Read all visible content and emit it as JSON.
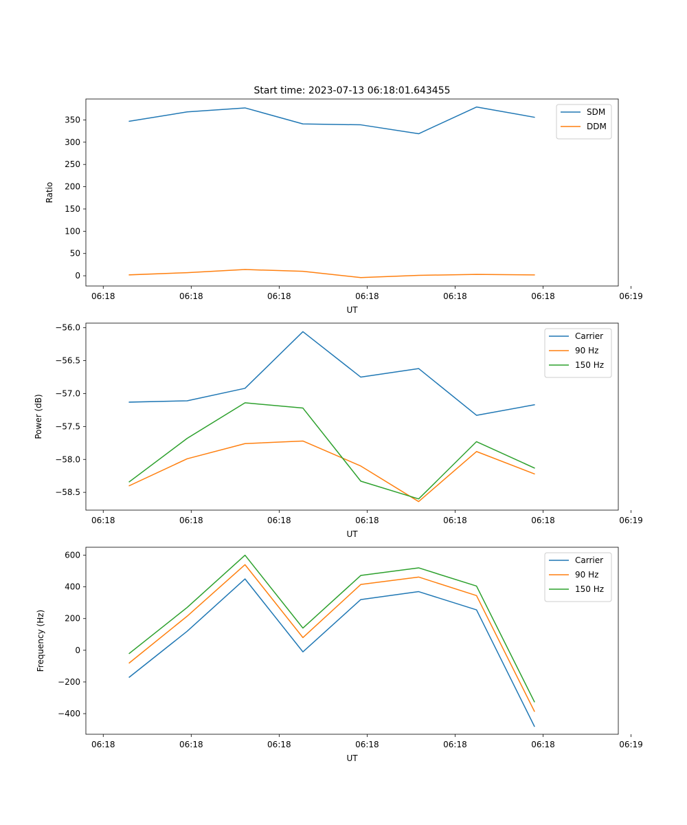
{
  "figure": {
    "title": "Start time: 2023-07-13 06:18:01.643455"
  },
  "chart_data": [
    {
      "type": "line",
      "title": "Start time: 2023-07-13 06:18:01.643455",
      "xlabel": "UT",
      "ylabel": "Ratio",
      "x_positions": [
        1,
        2,
        3,
        4,
        5,
        6,
        7,
        8
      ],
      "xlim": [
        0.25,
        9.45
      ],
      "xticks": [
        0.55,
        2.07,
        3.59,
        5.11,
        6.63,
        8.15,
        9.67
      ],
      "xtick_labels": [
        "06:18",
        "06:18",
        "06:18",
        "06:18",
        "06:18",
        "06:18",
        "06:19"
      ],
      "ylim": [
        -23,
        397
      ],
      "yticks": [
        0,
        50,
        100,
        150,
        200,
        250,
        300,
        350
      ],
      "ytick_labels": [
        "0",
        "50",
        "100",
        "150",
        "200",
        "250",
        "300",
        "350"
      ],
      "legend_loc": "upper right",
      "series": [
        {
          "name": "SDM",
          "color": "#1f77b4",
          "values": [
            347,
            368,
            377,
            341,
            339,
            319,
            379,
            356
          ]
        },
        {
          "name": "DDM",
          "color": "#ff7f0e",
          "values": [
            2,
            7,
            14,
            10,
            -4,
            1,
            3,
            2
          ]
        }
      ]
    },
    {
      "type": "line",
      "title": "",
      "xlabel": "UT",
      "ylabel": "Power (dB)",
      "x_positions": [
        1,
        2,
        3,
        4,
        5,
        6,
        7,
        8
      ],
      "xlim": [
        0.25,
        9.45
      ],
      "xticks": [
        0.55,
        2.07,
        3.59,
        5.11,
        6.63,
        8.15,
        9.67
      ],
      "xtick_labels": [
        "06:18",
        "06:18",
        "06:18",
        "06:18",
        "06:18",
        "06:18",
        "06:19"
      ],
      "ylim": [
        -58.77,
        -55.93
      ],
      "yticks": [
        -58.5,
        -58.0,
        -57.5,
        -57.0,
        -56.5,
        -56.0
      ],
      "ytick_labels": [
        "−58.5",
        "−58.0",
        "−57.5",
        "−57.0",
        "−56.5",
        "−56.0"
      ],
      "legend_loc": "upper right",
      "series": [
        {
          "name": "Carrier",
          "color": "#1f77b4",
          "values": [
            -57.13,
            -57.11,
            -56.92,
            -56.06,
            -56.75,
            -56.62,
            -57.33,
            -57.17
          ]
        },
        {
          "name": "90 Hz",
          "color": "#ff7f0e",
          "values": [
            -58.4,
            -57.99,
            -57.76,
            -57.72,
            -58.1,
            -58.64,
            -57.88,
            -58.22
          ]
        },
        {
          "name": "150 Hz",
          "color": "#2ca02c",
          "values": [
            -58.34,
            -57.68,
            -57.14,
            -57.22,
            -58.33,
            -58.6,
            -57.73,
            -58.13
          ]
        }
      ]
    },
    {
      "type": "line",
      "title": "",
      "xlabel": "UT",
      "ylabel": "Frequency (Hz)",
      "x_positions": [
        1,
        2,
        3,
        4,
        5,
        6,
        7,
        8
      ],
      "xlim": [
        0.25,
        9.45
      ],
      "xticks": [
        0.55,
        2.07,
        3.59,
        5.11,
        6.63,
        8.15,
        9.67
      ],
      "xtick_labels": [
        "06:18",
        "06:18",
        "06:18",
        "06:18",
        "06:18",
        "06:18",
        "06:19"
      ],
      "ylim": [
        -530,
        650
      ],
      "yticks": [
        -400,
        -200,
        0,
        200,
        400,
        600
      ],
      "ytick_labels": [
        "−400",
        "−200",
        "0",
        "200",
        "400",
        "600"
      ],
      "legend_loc": "upper right",
      "series": [
        {
          "name": "Carrier",
          "color": "#1f77b4",
          "values": [
            -170,
            120,
            450,
            -10,
            320,
            370,
            255,
            -480
          ]
        },
        {
          "name": "90 Hz",
          "color": "#ff7f0e",
          "values": [
            -80,
            215,
            540,
            80,
            415,
            462,
            345,
            -385
          ]
        },
        {
          "name": "150 Hz",
          "color": "#2ca02c",
          "values": [
            -20,
            270,
            600,
            140,
            472,
            520,
            405,
            -325
          ]
        }
      ]
    }
  ]
}
